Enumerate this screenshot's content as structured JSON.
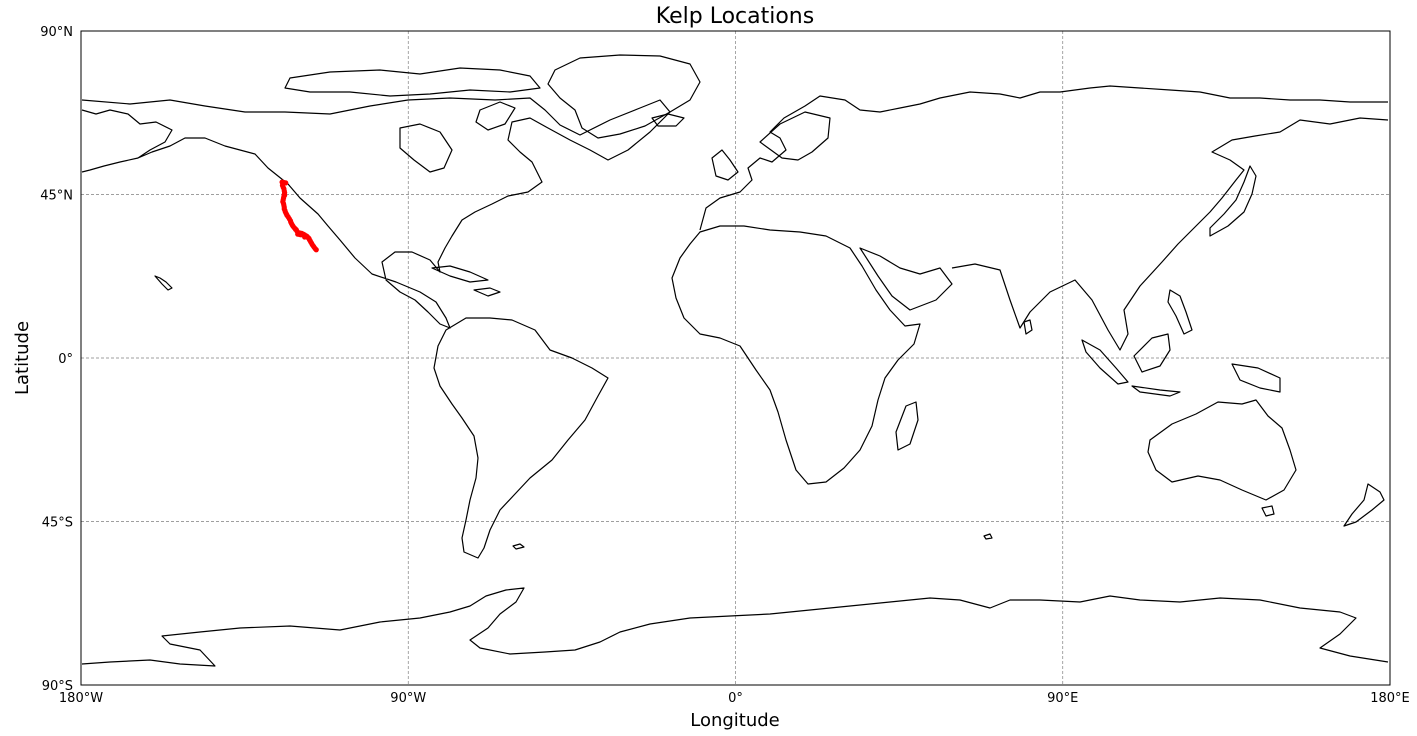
{
  "chart_data": {
    "type": "scatter",
    "title": "Kelp Locations",
    "xlabel": "Longitude",
    "ylabel": "Latitude",
    "xlim": [
      -180,
      180
    ],
    "ylim": [
      -90,
      90
    ],
    "grid": true,
    "xticks": [
      {
        "value": -180,
        "label": "180°W"
      },
      {
        "value": -90,
        "label": "90°W"
      },
      {
        "value": 0,
        "label": "0°"
      },
      {
        "value": 90,
        "label": "90°E"
      },
      {
        "value": 180,
        "label": "180°E"
      }
    ],
    "yticks": [
      {
        "value": 90,
        "label": "90°N"
      },
      {
        "value": 45,
        "label": "45°N"
      },
      {
        "value": 0,
        "label": "0°"
      },
      {
        "value": -45,
        "label": "45°S"
      },
      {
        "value": -90,
        "label": "90°S"
      }
    ],
    "marker_color": "#ff0000",
    "land_outline_color": "#000000",
    "points": [
      {
        "lon": -124.2,
        "lat": 48.3
      },
      {
        "lon": -124.5,
        "lat": 48.0
      },
      {
        "lon": -124.6,
        "lat": 47.5
      },
      {
        "lon": -124.4,
        "lat": 47.0
      },
      {
        "lon": -124.2,
        "lat": 46.6
      },
      {
        "lon": -124.1,
        "lat": 46.0
      },
      {
        "lon": -124.0,
        "lat": 45.5
      },
      {
        "lon": -124.1,
        "lat": 45.0
      },
      {
        "lon": -124.2,
        "lat": 44.5
      },
      {
        "lon": -124.3,
        "lat": 44.0
      },
      {
        "lon": -124.4,
        "lat": 43.5
      },
      {
        "lon": -124.5,
        "lat": 43.0
      },
      {
        "lon": -124.3,
        "lat": 42.5
      },
      {
        "lon": -124.2,
        "lat": 42.0
      },
      {
        "lon": -124.1,
        "lat": 41.5
      },
      {
        "lon": -124.1,
        "lat": 41.0
      },
      {
        "lon": -123.9,
        "lat": 40.6
      },
      {
        "lon": -123.8,
        "lat": 40.2
      },
      {
        "lon": -123.6,
        "lat": 39.8
      },
      {
        "lon": -123.3,
        "lat": 39.2
      },
      {
        "lon": -123.0,
        "lat": 38.8
      },
      {
        "lon": -122.7,
        "lat": 38.3
      },
      {
        "lon": -122.4,
        "lat": 37.8
      },
      {
        "lon": -122.3,
        "lat": 37.4
      },
      {
        "lon": -122.1,
        "lat": 37.0
      },
      {
        "lon": -121.9,
        "lat": 36.6
      },
      {
        "lon": -121.7,
        "lat": 36.3
      },
      {
        "lon": -121.4,
        "lat": 35.9
      },
      {
        "lon": -121.1,
        "lat": 35.6
      },
      {
        "lon": -120.8,
        "lat": 35.3
      },
      {
        "lon": -120.6,
        "lat": 34.9
      },
      {
        "lon": -120.3,
        "lat": 34.5
      },
      {
        "lon": -119.8,
        "lat": 34.4
      },
      {
        "lon": -119.3,
        "lat": 34.3
      },
      {
        "lon": -118.8,
        "lat": 34.0
      },
      {
        "lon": -118.5,
        "lat": 33.9
      },
      {
        "lon": -118.4,
        "lat": 33.7
      },
      {
        "lon": -118.0,
        "lat": 33.6
      },
      {
        "lon": -117.8,
        "lat": 33.4
      },
      {
        "lon": -117.5,
        "lat": 33.1
      },
      {
        "lon": -117.3,
        "lat": 32.9
      },
      {
        "lon": -117.2,
        "lat": 32.6
      },
      {
        "lon": -117.0,
        "lat": 32.3
      },
      {
        "lon": -116.8,
        "lat": 31.9
      },
      {
        "lon": -116.6,
        "lat": 31.6
      },
      {
        "lon": -116.4,
        "lat": 31.2
      },
      {
        "lon": -116.1,
        "lat": 30.8
      },
      {
        "lon": -115.9,
        "lat": 30.5
      },
      {
        "lon": -115.6,
        "lat": 30.1
      },
      {
        "lon": -115.3,
        "lat": 29.8
      },
      {
        "lon": -119.9,
        "lat": 34.0
      },
      {
        "lon": -118.5,
        "lat": 33.3
      },
      {
        "lon": -119.5,
        "lat": 33.9
      },
      {
        "lon": -120.4,
        "lat": 34.1
      },
      {
        "lon": -118.9,
        "lat": 34.1
      },
      {
        "lon": -121.0,
        "lat": 35.4
      },
      {
        "lon": -123.4,
        "lat": 39.4
      },
      {
        "lon": -124.0,
        "lat": 44.8
      },
      {
        "lon": -124.7,
        "lat": 48.4
      },
      {
        "lon": -123.7,
        "lat": 48.2
      }
    ]
  }
}
